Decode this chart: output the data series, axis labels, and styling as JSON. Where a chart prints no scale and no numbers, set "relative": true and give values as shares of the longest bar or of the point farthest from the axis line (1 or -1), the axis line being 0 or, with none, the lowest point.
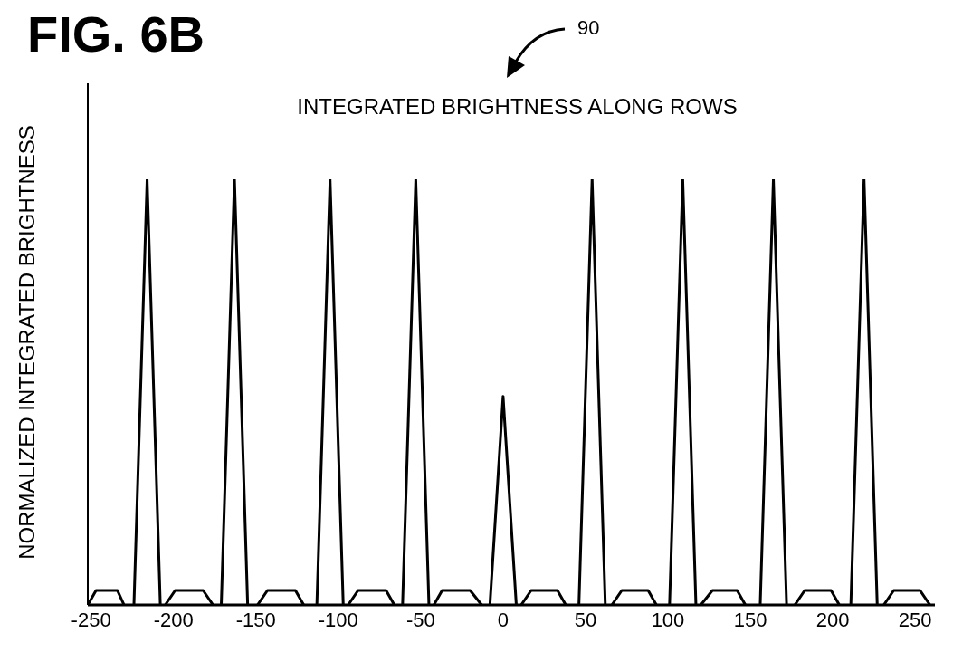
{
  "chart_data": {
    "type": "line",
    "title": "INTEGRATED BRIGHTNESS ALONG ROWS",
    "ylabel": "NORMALIZED INTEGRATED BRIGHTNESS",
    "annotations": [
      "FIG. 6B",
      "90"
    ],
    "relative": true,
    "xlim": [
      -252,
      262
    ],
    "xticks": [
      -250,
      -200,
      -150,
      -100,
      -50,
      0,
      50,
      100,
      150,
      200,
      250
    ],
    "grid": false,
    "marker": "none",
    "line_style": "solid",
    "series": [
      {
        "color": "#000000",
        "x": [
          -224,
          -216,
          -208,
          -190,
          -171,
          -163,
          -155,
          -130,
          -113,
          -105,
          -97,
          -79,
          -61,
          -53,
          -45,
          -27,
          -8,
          0,
          8,
          27,
          46,
          54,
          62,
          80,
          101,
          109,
          117,
          137,
          156,
          164,
          172,
          192,
          211,
          219,
          227
        ],
        "values": [
          0,
          1,
          0,
          null,
          0,
          1,
          0,
          null,
          0,
          1,
          0,
          null,
          0,
          1,
          0,
          null,
          0,
          0.49,
          0,
          null,
          0,
          1,
          0,
          null,
          0,
          1,
          0,
          null,
          0,
          1,
          0,
          null,
          0,
          1,
          0
        ]
      },
      {
        "color": "#000000",
        "x": [
          -252,
          -247,
          -234,
          -230,
          -215,
          -205,
          -199,
          -182,
          -176,
          -160,
          -149,
          -143,
          -126,
          -121,
          -110,
          -94,
          -88,
          -71,
          -66,
          -50,
          -42,
          -37,
          -20,
          -13,
          0,
          11,
          17,
          33,
          38,
          50,
          66,
          72,
          88,
          93,
          110,
          120,
          127,
          142,
          147,
          160,
          177,
          183,
          199,
          204,
          215,
          231,
          237,
          253,
          259
        ],
        "values": [
          0,
          0.034,
          0.034,
          0,
          null,
          0,
          0.034,
          0.034,
          0,
          null,
          0,
          0.034,
          0.034,
          0,
          null,
          0,
          0.034,
          0.034,
          0,
          null,
          0,
          0.034,
          0.034,
          0,
          null,
          0,
          0.034,
          0.034,
          0,
          null,
          0,
          0.034,
          0.034,
          0,
          null,
          0,
          0.034,
          0.034,
          0,
          null,
          0,
          0.034,
          0.034,
          0,
          null,
          0,
          0.034,
          0.034,
          0
        ]
      }
    ]
  }
}
